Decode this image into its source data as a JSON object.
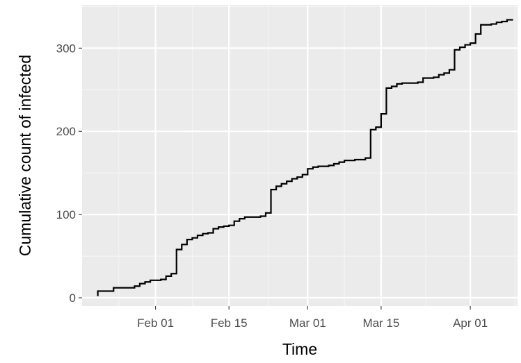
{
  "colors": {
    "panel_background": "#ebebeb",
    "grid_major": "#ffffff",
    "grid_minor": "#f5f5f5",
    "line": "#000000",
    "tick_label": "#4d4d4d"
  },
  "chart_data": {
    "type": "line",
    "line_style": "step",
    "title": "",
    "xlabel": "Time",
    "ylabel": "Cumulative count of infected",
    "x_axis_type": "date",
    "xlim": [
      "2020-01-18",
      "2020-04-10"
    ],
    "ylim": [
      -10,
      352
    ],
    "x_ticks": [
      {
        "date": "2020-02-01",
        "label": "Feb 01"
      },
      {
        "date": "2020-02-15",
        "label": "Feb 15"
      },
      {
        "date": "2020-03-01",
        "label": "Mar 01"
      },
      {
        "date": "2020-03-15",
        "label": "Mar 15"
      },
      {
        "date": "2020-04-01",
        "label": "Apr 01"
      }
    ],
    "y_ticks": [
      0,
      100,
      200,
      300
    ],
    "grid": true,
    "legend": "none",
    "series": [
      {
        "points": [
          [
            "2020-01-21",
            2
          ],
          [
            "2020-01-21",
            8
          ],
          [
            "2020-01-24",
            9
          ],
          [
            "2020-01-24",
            12
          ],
          [
            "2020-01-28",
            14
          ],
          [
            "2020-01-29",
            17
          ],
          [
            "2020-01-30",
            19
          ],
          [
            "2020-01-31",
            21
          ],
          [
            "2020-02-02",
            22
          ],
          [
            "2020-02-03",
            23
          ],
          [
            "2020-02-03",
            26
          ],
          [
            "2020-02-04",
            29
          ],
          [
            "2020-02-05",
            30
          ],
          [
            "2020-02-05",
            58
          ],
          [
            "2020-02-06",
            64
          ],
          [
            "2020-02-07",
            70
          ],
          [
            "2020-02-08",
            72
          ],
          [
            "2020-02-09",
            75
          ],
          [
            "2020-02-10",
            77
          ],
          [
            "2020-02-11",
            78
          ],
          [
            "2020-02-12",
            83
          ],
          [
            "2020-02-13",
            85
          ],
          [
            "2020-02-14",
            86
          ],
          [
            "2020-02-15",
            87
          ],
          [
            "2020-02-16",
            92
          ],
          [
            "2020-02-17",
            95
          ],
          [
            "2020-02-18",
            97
          ],
          [
            "2020-02-21",
            98
          ],
          [
            "2020-02-22",
            102
          ],
          [
            "2020-02-23",
            104
          ],
          [
            "2020-02-23",
            130
          ],
          [
            "2020-02-24",
            134
          ],
          [
            "2020-02-25",
            137
          ],
          [
            "2020-02-26",
            140
          ],
          [
            "2020-02-27",
            143
          ],
          [
            "2020-02-28",
            145
          ],
          [
            "2020-02-29",
            148
          ],
          [
            "2020-03-01",
            155
          ],
          [
            "2020-03-02",
            157
          ],
          [
            "2020-03-03",
            158
          ],
          [
            "2020-03-05",
            159
          ],
          [
            "2020-03-06",
            161
          ],
          [
            "2020-03-07",
            163
          ],
          [
            "2020-03-08",
            165
          ],
          [
            "2020-03-10",
            166
          ],
          [
            "2020-03-12",
            168
          ],
          [
            "2020-03-13",
            170
          ],
          [
            "2020-03-13",
            202
          ],
          [
            "2020-03-14",
            205
          ],
          [
            "2020-03-15",
            212
          ],
          [
            "2020-03-15",
            221
          ],
          [
            "2020-03-16",
            252
          ],
          [
            "2020-03-17",
            254
          ],
          [
            "2020-03-18",
            257
          ],
          [
            "2020-03-19",
            258
          ],
          [
            "2020-03-22",
            259
          ],
          [
            "2020-03-23",
            264
          ],
          [
            "2020-03-25",
            265
          ],
          [
            "2020-03-26",
            268
          ],
          [
            "2020-03-27",
            270
          ],
          [
            "2020-03-28",
            274
          ],
          [
            "2020-03-29",
            276
          ],
          [
            "2020-03-29",
            298
          ],
          [
            "2020-03-30",
            301
          ],
          [
            "2020-03-31",
            304
          ],
          [
            "2020-04-01",
            306
          ],
          [
            "2020-04-02",
            307
          ],
          [
            "2020-04-02",
            317
          ],
          [
            "2020-04-03",
            318
          ],
          [
            "2020-04-03",
            328
          ],
          [
            "2020-04-05",
            329
          ],
          [
            "2020-04-06",
            331
          ],
          [
            "2020-04-07",
            332
          ],
          [
            "2020-04-08",
            334
          ],
          [
            "2020-04-09",
            335
          ]
        ]
      }
    ]
  }
}
